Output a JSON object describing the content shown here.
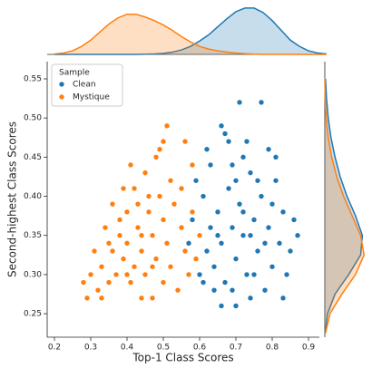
{
  "chart_data": {
    "type": "scatter",
    "x_label": "Top-1 Class Scores",
    "y_label": "Second-highest Class Scores",
    "legend_title": "Sample",
    "legend_position": "upper left",
    "xlim": [
      0.18,
      0.93
    ],
    "ylim": [
      0.22,
      0.572
    ],
    "xticks": [
      0.2,
      0.3,
      0.4,
      0.5,
      0.6,
      0.7,
      0.8,
      0.9
    ],
    "yticks": [
      0.25,
      {
        "value": 0.3,
        "label": "0.30"
      },
      0.35,
      {
        "value": 0.4,
        "label": "0.40"
      },
      0.45,
      {
        "value": 0.5,
        "label": "0.50"
      },
      0.55
    ],
    "series": [
      {
        "name": "Clean",
        "color": "#1f77b4",
        "x": [
          0.6,
          0.62,
          0.63,
          0.64,
          0.65,
          0.66,
          0.67,
          0.68,
          0.69,
          0.7,
          0.71,
          0.72,
          0.73,
          0.74,
          0.75,
          0.76,
          0.77,
          0.78,
          0.79,
          0.8,
          0.81,
          0.82,
          0.83,
          0.84,
          0.86,
          0.85,
          0.7,
          0.74,
          0.66,
          0.72,
          0.68,
          0.66,
          0.67,
          0.71,
          0.77,
          0.73,
          0.79,
          0.81,
          0.63,
          0.61,
          0.58,
          0.57,
          0.59,
          0.62,
          0.64,
          0.69,
          0.75,
          0.78,
          0.8,
          0.76,
          0.72,
          0.7,
          0.65,
          0.83,
          0.87,
          0.61,
          0.69,
          0.74
        ],
        "y": [
          0.3,
          0.33,
          0.36,
          0.31,
          0.38,
          0.34,
          0.29,
          0.41,
          0.36,
          0.32,
          0.39,
          0.35,
          0.3,
          0.43,
          0.37,
          0.33,
          0.4,
          0.28,
          0.36,
          0.31,
          0.42,
          0.34,
          0.38,
          0.3,
          0.37,
          0.33,
          0.26,
          0.27,
          0.26,
          0.45,
          0.47,
          0.49,
          0.48,
          0.52,
          0.52,
          0.47,
          0.46,
          0.45,
          0.44,
          0.4,
          0.37,
          0.34,
          0.42,
          0.46,
          0.28,
          0.28,
          0.3,
          0.34,
          0.39,
          0.42,
          0.38,
          0.42,
          0.35,
          0.27,
          0.35,
          0.29,
          0.44,
          0.35
        ]
      },
      {
        "name": "Mystique",
        "color": "#ff7f0e",
        "x": [
          0.3,
          0.32,
          0.29,
          0.33,
          0.35,
          0.36,
          0.38,
          0.37,
          0.39,
          0.4,
          0.41,
          0.42,
          0.43,
          0.44,
          0.45,
          0.46,
          0.47,
          0.48,
          0.49,
          0.5,
          0.51,
          0.52,
          0.53,
          0.55,
          0.56,
          0.58,
          0.6,
          0.57,
          0.54,
          0.5,
          0.47,
          0.44,
          0.4,
          0.42,
          0.45,
          0.48,
          0.5,
          0.51,
          0.49,
          0.46,
          0.38,
          0.35,
          0.34,
          0.36,
          0.39,
          0.41,
          0.43,
          0.31,
          0.28,
          0.33,
          0.52,
          0.55,
          0.58,
          0.56,
          0.59,
          0.4,
          0.44,
          0.47
        ],
        "y": [
          0.3,
          0.28,
          0.27,
          0.31,
          0.29,
          0.33,
          0.35,
          0.3,
          0.32,
          0.34,
          0.29,
          0.31,
          0.36,
          0.33,
          0.3,
          0.38,
          0.35,
          0.32,
          0.4,
          0.37,
          0.34,
          0.42,
          0.39,
          0.36,
          0.33,
          0.38,
          0.35,
          0.3,
          0.28,
          0.29,
          0.27,
          0.27,
          0.38,
          0.41,
          0.43,
          0.45,
          0.47,
          0.49,
          0.46,
          0.4,
          0.37,
          0.34,
          0.36,
          0.39,
          0.41,
          0.44,
          0.39,
          0.33,
          0.29,
          0.27,
          0.31,
          0.41,
          0.44,
          0.47,
          0.32,
          0.3,
          0.35,
          0.31
        ]
      }
    ],
    "marginal_top": {
      "type": "kde",
      "ylim": [
        0,
        5.6
      ],
      "x": [
        0.2,
        0.225,
        0.25,
        0.275,
        0.3,
        0.325,
        0.35,
        0.375,
        0.4,
        0.425,
        0.45,
        0.475,
        0.5,
        0.525,
        0.55,
        0.575,
        0.6,
        0.625,
        0.65,
        0.675,
        0.7,
        0.725,
        0.75,
        0.775,
        0.8,
        0.825,
        0.85,
        0.875,
        0.9,
        0.925,
        0.95
      ],
      "densities": [
        [
          0,
          0,
          0,
          0,
          0,
          0,
          0,
          0,
          0,
          0,
          0.02,
          0.05,
          0.12,
          0.25,
          0.5,
          0.9,
          1.5,
          2.2,
          3.1,
          4.0,
          4.8,
          5.2,
          5.2,
          4.7,
          3.8,
          2.7,
          1.6,
          0.9,
          0.4,
          0.15,
          0.05
        ],
        [
          0.05,
          0.15,
          0.4,
          0.9,
          1.6,
          2.5,
          3.4,
          4.1,
          4.5,
          4.5,
          4.2,
          3.8,
          3.3,
          2.7,
          2.0,
          1.4,
          0.9,
          0.6,
          0.4,
          0.25,
          0.15,
          0.08,
          0.03,
          0,
          0,
          0,
          0,
          0,
          0,
          0,
          0
        ]
      ]
    },
    "marginal_right": {
      "type": "kde",
      "xlim": [
        0,
        12.5
      ],
      "y": [
        0.225,
        0.25,
        0.275,
        0.3,
        0.325,
        0.35,
        0.375,
        0.4,
        0.425,
        0.45,
        0.475,
        0.5,
        0.525,
        0.55
      ],
      "densities": [
        [
          0.1,
          0.8,
          3,
          7,
          10.5,
          11,
          9,
          6.5,
          4.5,
          3,
          1.8,
          1,
          0.5,
          0.2
        ],
        [
          0.2,
          1.5,
          5,
          9,
          11.5,
          10.5,
          8,
          5.5,
          3.5,
          2,
          1,
          0.4,
          0.1,
          0.02
        ]
      ]
    }
  }
}
